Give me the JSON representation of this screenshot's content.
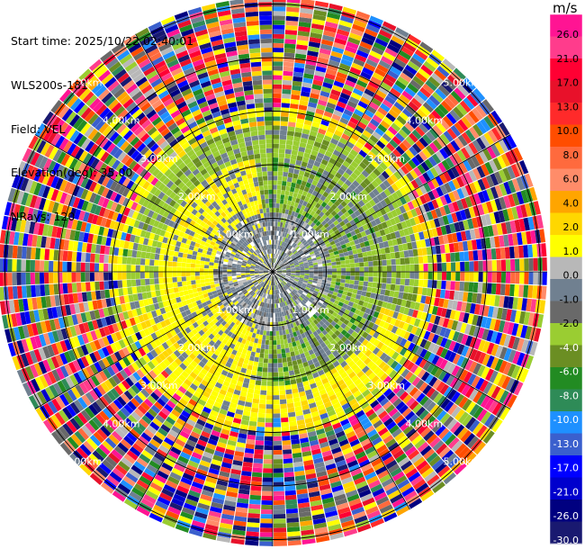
{
  "header": {
    "start_time": "Start time: 2025/10/22 02:40:01",
    "instrument": "WLS200s-181",
    "field": "Field: VEL",
    "elevation": "Elevation(deg): 35.00",
    "nrays": "NRays: 120"
  },
  "chart_data": {
    "type": "heatmap",
    "subtype": "polar-ppi",
    "field": "VEL",
    "units": "m/s",
    "n_rays": 120,
    "range_rings_km": [
      1,
      2,
      3,
      4,
      5
    ],
    "ring_labels": [
      "1.00km",
      "2.00km",
      "3.00km",
      "4.00km",
      "5.00km"
    ],
    "colorbar": {
      "unit_label": "m/s",
      "tick_labels": [
        "26.0",
        "21.0",
        "17.0",
        "13.0",
        "10.0",
        "8.0",
        "6.0",
        "4.0",
        "2.0",
        "1.0",
        "0.0",
        "-1.0",
        "-2.0",
        "-4.0",
        "-6.0",
        "-8.0",
        "-10.0",
        "-13.0",
        "-17.0",
        "-21.0",
        "-26.0",
        "-30.0"
      ],
      "colors": [
        "#ff1493",
        "#ff3c8c",
        "#ff0033",
        "#e8112a",
        "#ff2a2a",
        "#ff4d00",
        "#ff6a3d",
        "#ff8c69",
        "#ffa500",
        "#ffd700",
        "#ffff00",
        "#b8b8b8",
        "#708090",
        "#696969",
        "#9acd32",
        "#6b8e23",
        "#228b22",
        "#2e8b57",
        "#1e90ff",
        "#3a5fcd",
        "#0000ff",
        "#0000cd",
        "#000080",
        "#191970"
      ]
    },
    "inner_pattern": {
      "approx_velocity_ms": {
        "center": 0.0,
        "west_east_near": [
          -2.0,
          4.0
        ],
        "far_range_noise": [
          -30.0,
          26.0
        ]
      }
    }
  }
}
